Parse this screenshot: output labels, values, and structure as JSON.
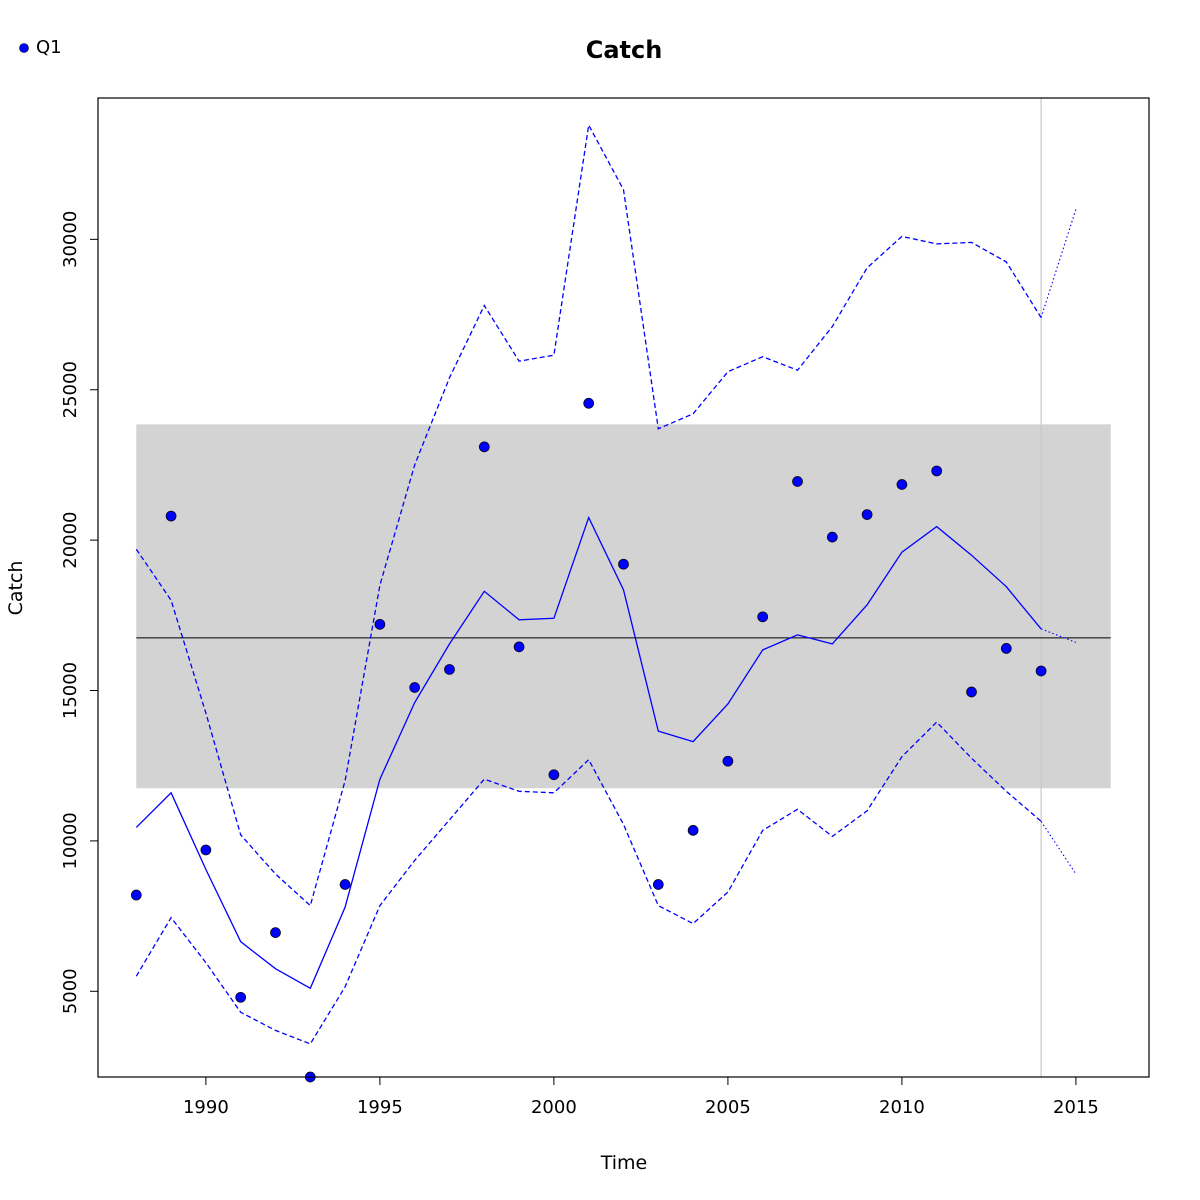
{
  "chart_data": {
    "type": "line",
    "title": "Catch",
    "xlabel": "Time",
    "ylabel": "Catch",
    "xlim": [
      1986.9,
      2017.1
    ],
    "ylim": [
      2150,
      34700
    ],
    "x_ticks": [
      1990,
      1995,
      2000,
      2005,
      2010,
      2015
    ],
    "y_ticks": [
      5000,
      10000,
      15000,
      20000,
      25000,
      30000
    ],
    "legend": {
      "position": "top-left",
      "entries": [
        {
          "label": "Q1",
          "marker": "point",
          "color": "#0000ff"
        }
      ]
    },
    "reference": {
      "band": {
        "x": [
          1988,
          2016
        ],
        "y": [
          11750,
          23850
        ],
        "color": "#d3d3d3"
      },
      "mean_line": {
        "y": 16750,
        "x": [
          1988,
          2016
        ],
        "color": "#000000"
      },
      "vline": {
        "x": 2014,
        "color": "#c8c8c8"
      }
    },
    "series": [
      {
        "name": "Q1",
        "type": "scatter",
        "color": "#0000ff",
        "x": [
          1988,
          1989,
          1990,
          1991,
          1992,
          1993,
          1994,
          1995,
          1996,
          1997,
          1998,
          1999,
          2000,
          2001,
          2002,
          2003,
          2004,
          2005,
          2006,
          2007,
          2008,
          2009,
          2010,
          2011,
          2012,
          2013,
          2014
        ],
        "y": [
          8200,
          20800,
          9700,
          4800,
          6950,
          2150,
          8550,
          17200,
          15100,
          15700,
          23100,
          16450,
          12200,
          24550,
          19200,
          8550,
          10350,
          12650,
          17450,
          21950,
          20100,
          20850,
          21850,
          22300,
          14950,
          16400,
          15650
        ]
      },
      {
        "type": "line",
        "style": "solid",
        "color": "#0000ff",
        "x": [
          1988,
          1989,
          1990,
          1991,
          1992,
          1993,
          1994,
          1995,
          1996,
          1997,
          1998,
          1999,
          2000,
          2001,
          2002,
          2003,
          2004,
          2005,
          2006,
          2007,
          2008,
          2009,
          2010,
          2011,
          2012,
          2013,
          2014
        ],
        "y": [
          10450,
          11600,
          9050,
          6650,
          5750,
          5100,
          7800,
          12050,
          14600,
          16550,
          18300,
          17350,
          17400,
          20750,
          18350,
          13650,
          13300,
          14550,
          16350,
          16850,
          16550,
          17850,
          19600,
          20450,
          19500,
          18450,
          17050
        ]
      },
      {
        "type": "line",
        "style": "dashed",
        "color": "#0000ff",
        "x": [
          1988,
          1989,
          1990,
          1991,
          1992,
          1993,
          1994,
          1995,
          1996,
          1997,
          1998,
          1999,
          2000,
          2001,
          2002,
          2003,
          2004,
          2005,
          2006,
          2007,
          2008,
          2009,
          2010,
          2011,
          2012,
          2013,
          2014
        ],
        "y": [
          19700,
          18000,
          14250,
          10200,
          8900,
          7850,
          12000,
          18500,
          22500,
          25400,
          27800,
          25950,
          26150,
          33800,
          31650,
          23700,
          24200,
          25600,
          26100,
          25650,
          27100,
          29050,
          30100,
          29850,
          29900,
          29250,
          27400
        ]
      },
      {
        "type": "line",
        "style": "dashed",
        "color": "#0000ff",
        "x": [
          1988,
          1989,
          1990,
          1991,
          1992,
          1993,
          1994,
          1995,
          1996,
          1997,
          1998,
          1999,
          2000,
          2001,
          2002,
          2003,
          2004,
          2005,
          2006,
          2007,
          2008,
          2009,
          2010,
          2011,
          2012,
          2013,
          2014
        ],
        "y": [
          5500,
          7450,
          5950,
          4300,
          3700,
          3250,
          5150,
          7850,
          9350,
          10700,
          12050,
          11650,
          11600,
          12700,
          10550,
          7850,
          7250,
          8300,
          10350,
          11050,
          10150,
          11000,
          12800,
          13950,
          12750,
          11650,
          10650
        ]
      },
      {
        "type": "line",
        "style": "dotted",
        "color": "#0000ff",
        "x": [
          2014,
          2015
        ],
        "y": [
          17050,
          16600
        ]
      },
      {
        "type": "line",
        "style": "dotted",
        "color": "#0000ff",
        "x": [
          2014,
          2015
        ],
        "y": [
          27400,
          31000
        ]
      },
      {
        "type": "line",
        "style": "dotted",
        "color": "#0000ff",
        "x": [
          2014,
          2015
        ],
        "y": [
          10650,
          8900
        ]
      }
    ]
  }
}
